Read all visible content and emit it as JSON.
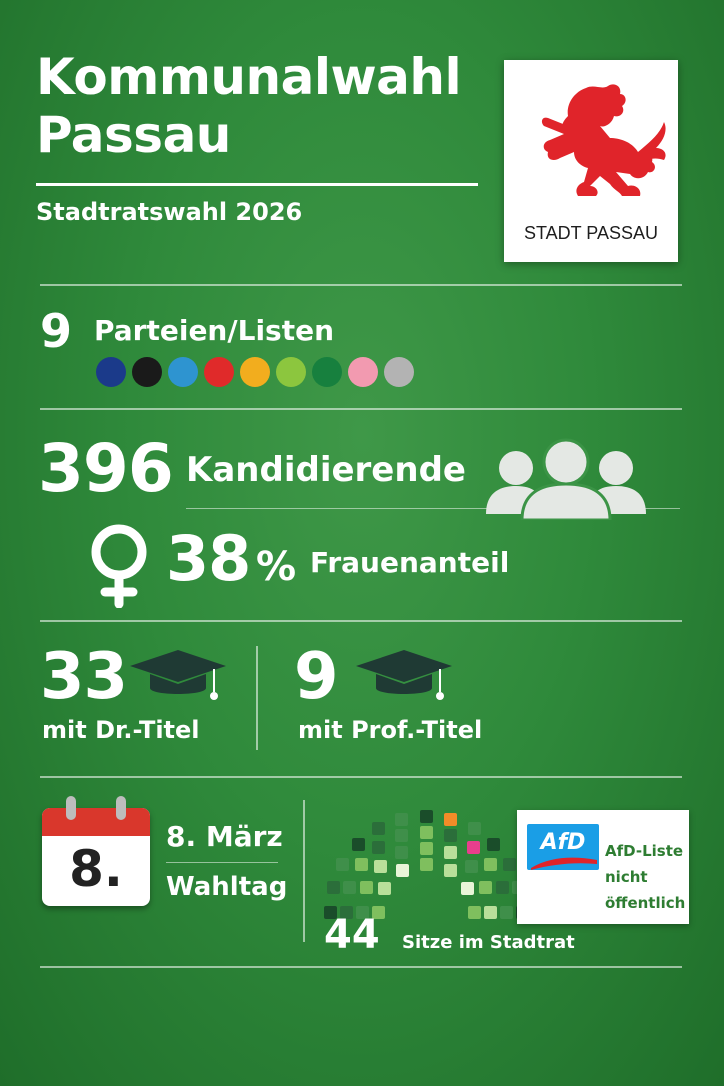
{
  "header": {
    "title_line1": "Kommunalwahl",
    "title_line2": "Passau",
    "subtitle": "Stadtratswahl 2026"
  },
  "logo": {
    "text": "STADT PASSAU",
    "icon": "red-lion-coat-of-arms"
  },
  "parties": {
    "count": "9",
    "label": "Parteien/Listen",
    "colors": [
      "#1b3a8a",
      "#1a1a1a",
      "#2e94d0",
      "#e02a2a",
      "#f2ad1e",
      "#8cc63e",
      "#17803e",
      "#f29ab0",
      "#b3b3b3"
    ]
  },
  "candidates": {
    "count": "396",
    "label": "Kandidierende",
    "icon": "people-group-icon"
  },
  "women": {
    "percent": "38",
    "unit": "%",
    "label": "Frauenanteil",
    "icon": "female-symbol-icon"
  },
  "dr": {
    "count": "33",
    "label": "mit Dr.-Titel",
    "icon": "graduation-cap-icon"
  },
  "prof": {
    "count": "9",
    "label": "mit Prof.-Titel",
    "icon": "graduation-cap-icon"
  },
  "election_day": {
    "calendar_day": "8.",
    "date": "8. März",
    "label": "Wahltag",
    "icon": "calendar-icon"
  },
  "seats": {
    "count": "44",
    "label": "Sitze im Stadtrat",
    "icon": "parliament-hemicycle-icon"
  },
  "afd": {
    "logo_text": "AfD",
    "note_line1": "AfD-Liste",
    "note_line2": "nicht",
    "note_line3": "öffentlich"
  },
  "colors": {
    "background": "#2f8a3b",
    "lion_red": "#e0242a",
    "cap_dark": "#1f3a34",
    "calendar_red": "#d9372c"
  }
}
